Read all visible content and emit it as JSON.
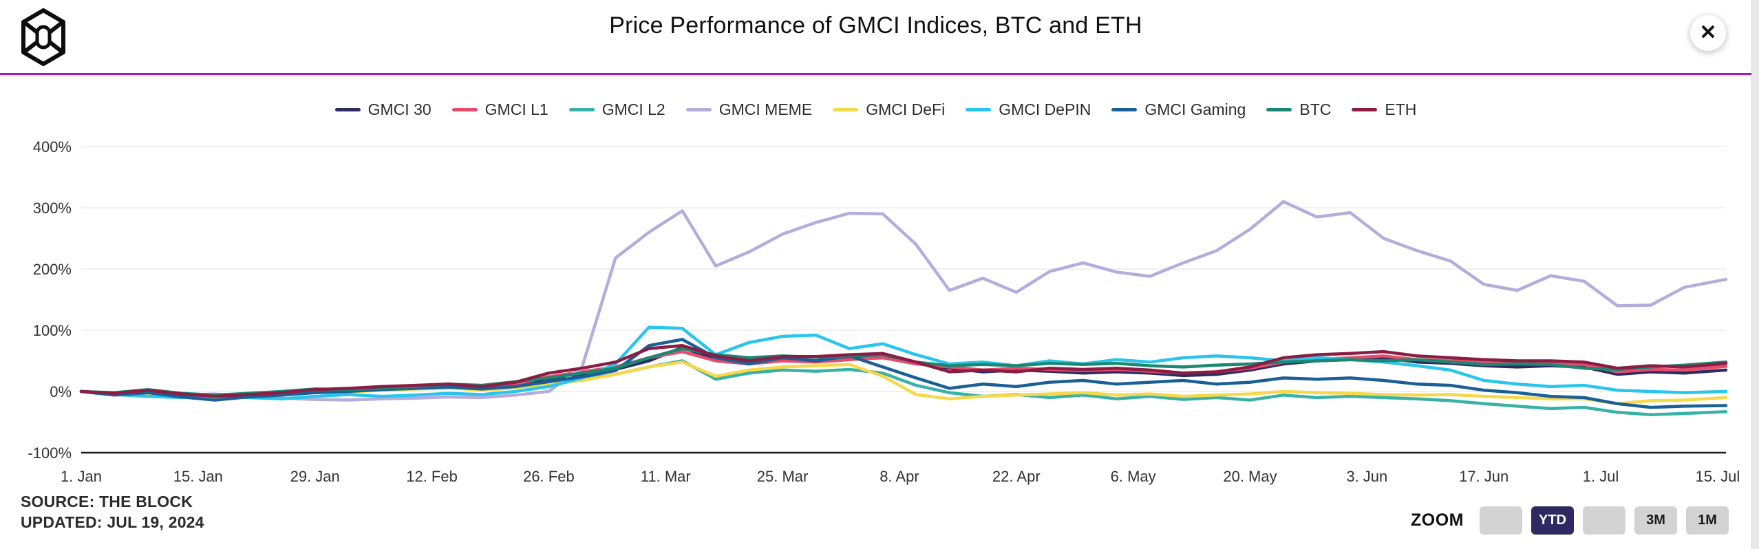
{
  "header": {
    "title": "Price Performance of GMCI Indices, BTC and ETH",
    "close_glyph": "✕",
    "logo_icon": "the-block-cube-logo",
    "divider_color": "#b012cc"
  },
  "footer": {
    "source_line1": "SOURCE: THE BLOCK",
    "source_line2": "UPDATED: JUL 19, 2024",
    "zoom_label": "ZOOM",
    "zoom_buttons": [
      {
        "label": "",
        "active": false
      },
      {
        "label": "YTD",
        "active": true
      },
      {
        "label": "",
        "active": false
      },
      {
        "label": "3M",
        "active": false
      },
      {
        "label": "1M",
        "active": false
      }
    ],
    "active_button_color": "#2e2960",
    "inactive_button_color": "#d3d3d3"
  },
  "chart_data": {
    "type": "line",
    "title": "Price Performance of GMCI Indices, BTC and ETH",
    "xlabel": "",
    "ylabel": "",
    "ylim": [
      -100,
      400
    ],
    "grid": true,
    "legend_position": "top-center",
    "y_ticks": [
      {
        "label": "400%",
        "value": 400
      },
      {
        "label": "300%",
        "value": 300
      },
      {
        "label": "200%",
        "value": 200
      },
      {
        "label": "100%",
        "value": 100
      },
      {
        "label": "0%",
        "value": 0
      },
      {
        "label": "-100%",
        "value": -100
      }
    ],
    "x_axis_labels": [
      {
        "label": "1. Jan",
        "day": 0
      },
      {
        "label": "15. Jan",
        "day": 14
      },
      {
        "label": "29. Jan",
        "day": 28
      },
      {
        "label": "12. Feb",
        "day": 42
      },
      {
        "label": "26. Feb",
        "day": 56
      },
      {
        "label": "11. Mar",
        "day": 70
      },
      {
        "label": "25. Mar",
        "day": 84
      },
      {
        "label": "8. Apr",
        "day": 98
      },
      {
        "label": "22. Apr",
        "day": 112
      },
      {
        "label": "6. May",
        "day": 126
      },
      {
        "label": "20. May",
        "day": 140
      },
      {
        "label": "3. Jun",
        "day": 154
      },
      {
        "label": "17. Jun",
        "day": 168
      },
      {
        "label": "1. Jul",
        "day": 182
      },
      {
        "label": "15. Jul",
        "day": 196
      }
    ],
    "x_unit": "days_since_jan_1_2024",
    "days": [
      0,
      4,
      8,
      12,
      16,
      20,
      24,
      28,
      32,
      36,
      40,
      44,
      48,
      52,
      56,
      60,
      64,
      68,
      72,
      76,
      80,
      84,
      88,
      92,
      96,
      100,
      104,
      108,
      112,
      116,
      120,
      124,
      128,
      132,
      136,
      140,
      144,
      148,
      152,
      156,
      160,
      164,
      168,
      172,
      176,
      180,
      184,
      188,
      192,
      197
    ],
    "series": [
      {
        "name": "GMCI 30",
        "color": "#2f2a5f",
        "values": [
          0,
          -5,
          -1,
          -7,
          -11,
          -7,
          -4,
          0,
          1,
          4,
          6,
          8,
          5,
          10,
          20,
          28,
          36,
          50,
          72,
          52,
          46,
          52,
          50,
          55,
          58,
          46,
          38,
          32,
          35,
          33,
          30,
          32,
          30,
          26,
          28,
          35,
          45,
          50,
          52,
          55,
          48,
          46,
          42,
          40,
          42,
          40,
          28,
          32,
          30,
          35
        ]
      },
      {
        "name": "GMCI L1",
        "color": "#ea4b6d",
        "values": [
          0,
          -4,
          0,
          -6,
          -10,
          -6,
          -3,
          1,
          2,
          5,
          7,
          9,
          6,
          12,
          24,
          32,
          40,
          55,
          65,
          50,
          45,
          50,
          48,
          52,
          55,
          45,
          40,
          35,
          38,
          36,
          34,
          36,
          33,
          30,
          32,
          38,
          48,
          52,
          55,
          58,
          52,
          50,
          48,
          46,
          47,
          44,
          32,
          36,
          35,
          41
        ]
      },
      {
        "name": "GMCI L2",
        "color": "#38b2a7",
        "values": [
          0,
          -5,
          -2,
          -8,
          -12,
          -8,
          -5,
          -1,
          0,
          2,
          4,
          6,
          3,
          7,
          14,
          20,
          28,
          40,
          50,
          20,
          30,
          35,
          33,
          36,
          30,
          10,
          -2,
          -8,
          -5,
          -10,
          -6,
          -12,
          -8,
          -13,
          -10,
          -14,
          -6,
          -10,
          -8,
          -10,
          -12,
          -15,
          -20,
          -24,
          -28,
          -26,
          -34,
          -38,
          -36,
          -33
        ]
      },
      {
        "name": "GMCI MEME",
        "color": "#b5acde",
        "values": [
          0,
          -4,
          -2,
          -6,
          -4,
          -9,
          -11,
          -13,
          -14,
          -12,
          -11,
          -9,
          -10,
          -6,
          0,
          40,
          218,
          260,
          295,
          205,
          228,
          257,
          276,
          291,
          290,
          240,
          165,
          185,
          162,
          196,
          210,
          195,
          188,
          210,
          230,
          265,
          310,
          285,
          292,
          250,
          230,
          213,
          175,
          165,
          189,
          180,
          140,
          141,
          170,
          183
        ]
      },
      {
        "name": "GMCI DeFi",
        "color": "#f6d84b",
        "values": [
          0,
          -6,
          -3,
          -9,
          -13,
          -9,
          -6,
          -2,
          -1,
          2,
          4,
          6,
          2,
          6,
          12,
          18,
          28,
          40,
          48,
          25,
          35,
          40,
          42,
          44,
          25,
          -5,
          -12,
          -8,
          -6,
          -4,
          -2,
          -6,
          -4,
          -8,
          -6,
          -4,
          0,
          -2,
          -3,
          -5,
          -6,
          -5,
          -8,
          -10,
          -12,
          -12,
          -20,
          -15,
          -14,
          -10
        ]
      },
      {
        "name": "GMCI DePIN",
        "color": "#29c5ec",
        "values": [
          0,
          -5,
          -8,
          -10,
          -6,
          -10,
          -12,
          -8,
          -5,
          -8,
          -6,
          -3,
          -5,
          0,
          8,
          22,
          45,
          105,
          103,
          60,
          80,
          90,
          92,
          70,
          78,
          60,
          45,
          48,
          42,
          50,
          45,
          52,
          48,
          55,
          58,
          55,
          50,
          55,
          52,
          48,
          42,
          35,
          18,
          12,
          8,
          10,
          2,
          0,
          -2,
          0
        ]
      },
      {
        "name": "GMCI Gaming",
        "color": "#1a6096",
        "values": [
          0,
          -6,
          -2,
          -9,
          -14,
          -9,
          -6,
          -2,
          0,
          3,
          5,
          7,
          4,
          8,
          16,
          24,
          34,
          75,
          85,
          55,
          45,
          55,
          50,
          58,
          40,
          22,
          5,
          12,
          8,
          15,
          18,
          12,
          15,
          18,
          12,
          15,
          22,
          20,
          22,
          18,
          12,
          10,
          2,
          -2,
          -8,
          -10,
          -20,
          -26,
          -24,
          -23
        ]
      },
      {
        "name": "BTC",
        "color": "#1d8872",
        "values": [
          0,
          -2,
          3,
          -3,
          -6,
          -3,
          0,
          4,
          3,
          6,
          8,
          12,
          10,
          16,
          22,
          30,
          38,
          55,
          70,
          60,
          55,
          58,
          56,
          58,
          60,
          48,
          42,
          44,
          42,
          46,
          44,
          46,
          42,
          40,
          43,
          45,
          48,
          50,
          52,
          50,
          52,
          48,
          44,
          45,
          44,
          38,
          36,
          40,
          43,
          48
        ]
      },
      {
        "name": "ETH",
        "color": "#8b1d44",
        "values": [
          0,
          -3,
          2,
          -4,
          -8,
          -5,
          -2,
          3,
          5,
          8,
          10,
          12,
          8,
          15,
          30,
          38,
          48,
          70,
          75,
          58,
          50,
          57,
          57,
          60,
          62,
          48,
          32,
          35,
          32,
          38,
          36,
          38,
          35,
          30,
          32,
          40,
          55,
          60,
          62,
          65,
          58,
          55,
          52,
          50,
          50,
          48,
          38,
          42,
          40,
          46
        ]
      }
    ]
  }
}
